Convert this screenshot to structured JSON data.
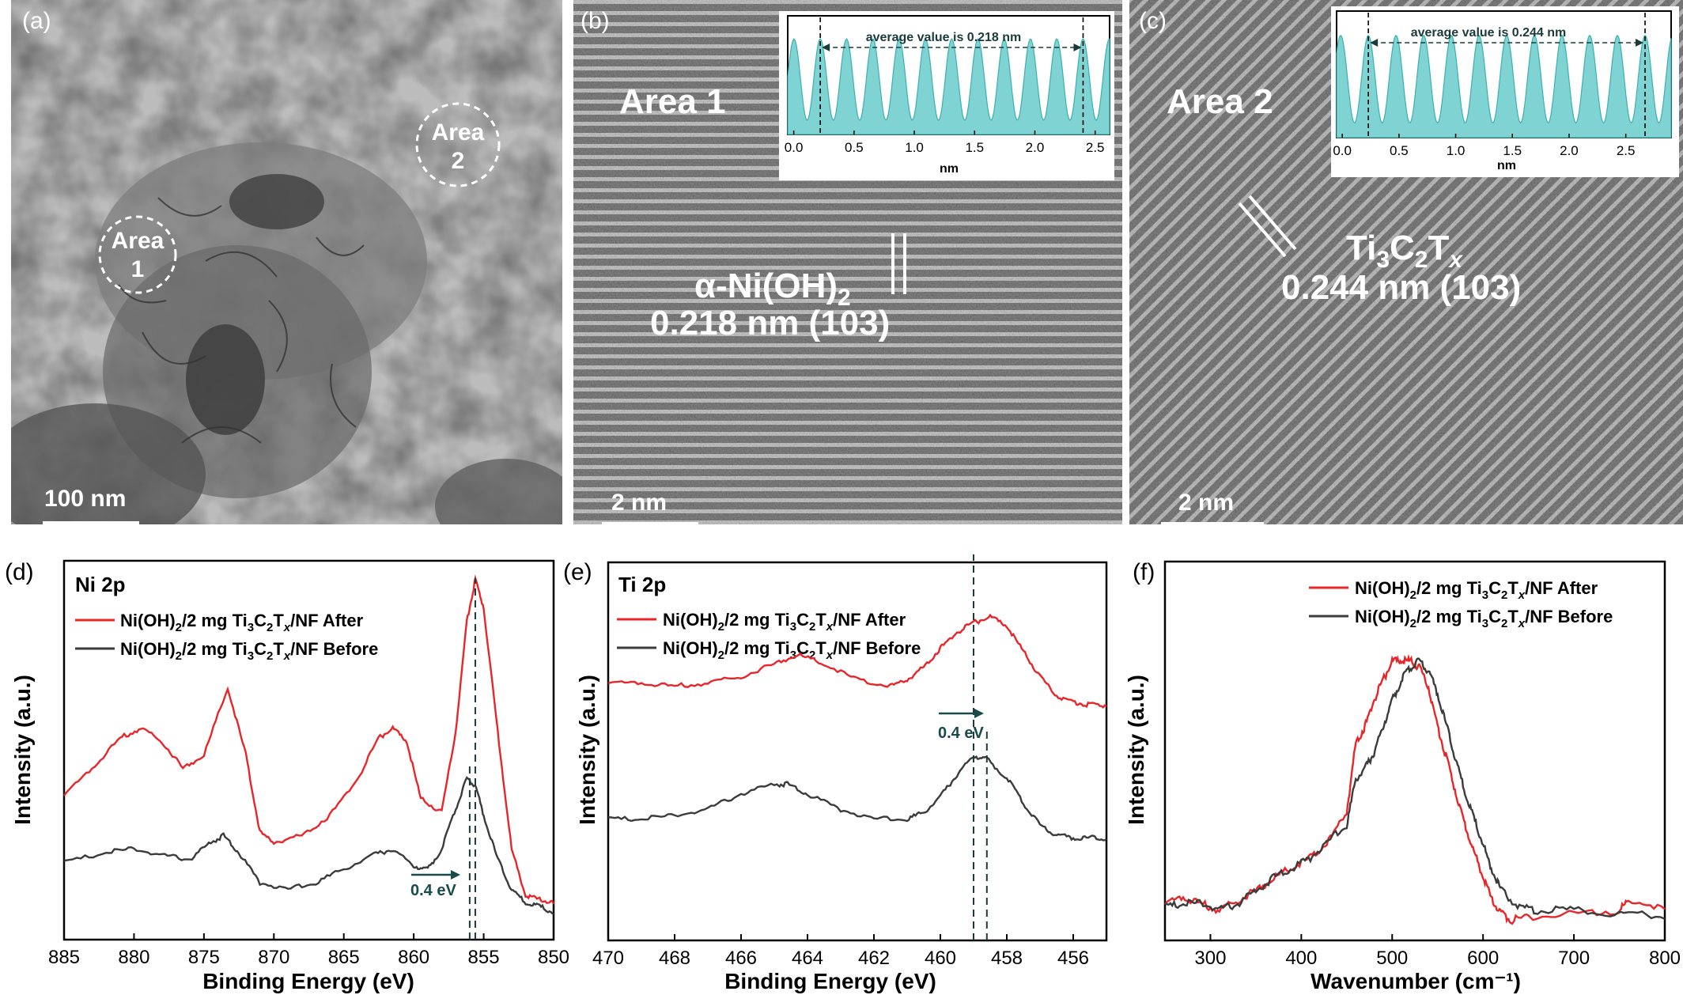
{
  "panels": {
    "a": {
      "label": "(a)",
      "area1": [
        "Area",
        "1"
      ],
      "area2": [
        "Area",
        "2"
      ],
      "scale_bar": "100 nm"
    },
    "b": {
      "label": "(b)",
      "area": "Area 1",
      "phase": "α-Ni(OH)",
      "phase_sub": "2",
      "spacing": "0.218 nm (103)",
      "scale_bar": "2 nm"
    },
    "c": {
      "label": "(c)",
      "phase_parts": [
        "Ti",
        "3",
        "C",
        "2",
        "T",
        "x"
      ],
      "area": "Area 2",
      "spacing": "0.244 nm (103)",
      "scale_bar": "2 nm"
    },
    "d": {
      "label": "(d)",
      "title": "Ni 2p",
      "shift": "0.4 eV"
    },
    "e": {
      "label": "(e)",
      "title": "Ti 2p",
      "shift": "0.4 eV"
    },
    "f": {
      "label": "(f)"
    }
  },
  "legend": {
    "after": {
      "parts": [
        "Ni(OH)",
        "2",
        "/2 mg Ti",
        "3",
        "C",
        "2",
        "T",
        "x",
        "/NF After"
      ],
      "color": "#e8262a"
    },
    "before": {
      "parts": [
        "Ni(OH)",
        "2",
        "/2 mg Ti",
        "3",
        "C",
        "2",
        "T",
        "x",
        "/NF Before"
      ],
      "color": "#3b3b3b"
    }
  },
  "chart_data": [
    {
      "panel": "b-inset",
      "type": "area",
      "xlabel": "nm",
      "xticks": [
        "0.0",
        "0.5",
        "1.0",
        "1.5",
        "2.0",
        "2.5"
      ],
      "xlim": [
        -0.05,
        2.62
      ],
      "annotation": "average value is 0.218 nm",
      "marker_x": [
        0.22,
        2.4
      ],
      "peaks_x": [
        0.22,
        0.44,
        0.65,
        0.87,
        1.09,
        1.31,
        1.52,
        1.74,
        1.96,
        2.18,
        2.4
      ],
      "color": "#7fd3d3"
    },
    {
      "panel": "c-inset",
      "type": "area",
      "xlabel": "nm",
      "xticks": [
        "0.0",
        "0.5",
        "1.0",
        "1.5",
        "2.0",
        "2.5"
      ],
      "xlim": [
        -0.05,
        2.9
      ],
      "annotation": "average value is 0.244 nm",
      "marker_x": [
        0.23,
        2.67
      ],
      "peaks_x": [
        0.23,
        0.47,
        0.72,
        0.96,
        1.21,
        1.45,
        1.69,
        1.94,
        2.18,
        2.43,
        2.67
      ],
      "color": "#7fd3d3"
    },
    {
      "panel": "d",
      "type": "line",
      "title": "Ni 2p",
      "xlabel": "Binding Energy (eV)",
      "ylabel": "Intensity (a.u.)",
      "xlim": [
        885,
        850
      ],
      "ylim": [
        0,
        1
      ],
      "xticks": [
        885,
        880,
        875,
        870,
        865,
        860,
        855,
        850
      ],
      "series": [
        {
          "name": "Ni(OH)2/2 mg Ti3C2Tx/NF After",
          "color": "#e8262a",
          "x": [
            885,
            883,
            881,
            879.5,
            878,
            876.5,
            875,
            873.3,
            872,
            871,
            870,
            868,
            866,
            864,
            862.5,
            861.5,
            860.5,
            859.5,
            858,
            857,
            856.2,
            855.6,
            855,
            854,
            853,
            852,
            851,
            850
          ],
          "y": [
            0.36,
            0.44,
            0.53,
            0.56,
            0.52,
            0.44,
            0.48,
            0.68,
            0.48,
            0.25,
            0.22,
            0.24,
            0.3,
            0.41,
            0.53,
            0.56,
            0.52,
            0.35,
            0.31,
            0.55,
            0.88,
            1.0,
            0.92,
            0.55,
            0.2,
            0.06,
            0.05,
            0.04
          ]
        },
        {
          "name": "Ni(OH)2/2 mg Ti3C2Tx/NF Before",
          "color": "#3b3b3b",
          "x": [
            885,
            882,
            880,
            878,
            876,
            874.5,
            873.6,
            872.5,
            871,
            869,
            867,
            865,
            863,
            861.5,
            860,
            859,
            858,
            857,
            856.2,
            855.6,
            855,
            854,
            853,
            852,
            851,
            850
          ],
          "y": [
            0.16,
            0.19,
            0.2,
            0.18,
            0.17,
            0.22,
            0.24,
            0.19,
            0.1,
            0.08,
            0.1,
            0.14,
            0.18,
            0.2,
            0.15,
            0.14,
            0.2,
            0.32,
            0.41,
            0.39,
            0.3,
            0.17,
            0.08,
            0.04,
            0.03,
            0.01
          ]
        }
      ],
      "dashed_x": [
        855.6,
        856.0
      ]
    },
    {
      "panel": "e",
      "type": "line",
      "title": "Ti 2p",
      "xlabel": "Binding Energy (eV)",
      "ylabel": "Intensity (a.u.)",
      "xlim": [
        470,
        455
      ],
      "ylim": [
        0,
        1
      ],
      "xticks": [
        470,
        468,
        466,
        464,
        462,
        460,
        458,
        456
      ],
      "series": [
        {
          "name": "Ni(OH)2/2 mg Ti3C2Tx/NF After",
          "color": "#e8262a",
          "x": [
            470,
            469,
            468,
            467,
            466,
            465,
            464.3,
            463.5,
            462.5,
            461.5,
            461,
            460.5,
            460,
            459.5,
            459,
            458.5,
            458,
            457.5,
            457,
            456.5,
            456,
            455.5,
            455
          ],
          "y": [
            0.6,
            0.6,
            0.59,
            0.6,
            0.62,
            0.66,
            0.69,
            0.66,
            0.61,
            0.59,
            0.61,
            0.65,
            0.71,
            0.76,
            0.79,
            0.81,
            0.78,
            0.7,
            0.62,
            0.56,
            0.54,
            0.53,
            0.53
          ]
        },
        {
          "name": "Ni(OH)2/2 mg Ti3C2Tx/NF Before",
          "color": "#3b3b3b",
          "x": [
            470,
            469,
            468,
            467,
            466,
            465,
            464.6,
            464,
            463,
            462,
            461,
            460.5,
            460,
            459.5,
            459,
            458.6,
            458,
            457.5,
            457,
            456.5,
            456,
            455.5,
            455
          ],
          "y": [
            0.17,
            0.17,
            0.18,
            0.2,
            0.25,
            0.28,
            0.28,
            0.25,
            0.2,
            0.17,
            0.17,
            0.19,
            0.24,
            0.31,
            0.37,
            0.36,
            0.3,
            0.22,
            0.15,
            0.12,
            0.11,
            0.11,
            0.11
          ]
        }
      ],
      "dashed_x": [
        459.0,
        458.6
      ]
    },
    {
      "panel": "f",
      "type": "line",
      "xlabel": "Wavenumber (cm⁻¹)",
      "ylabel": "Intensity (a.u.)",
      "xlim": [
        250,
        800
      ],
      "ylim": [
        0,
        1
      ],
      "xticks": [
        300,
        400,
        500,
        600,
        700,
        800
      ],
      "series": [
        {
          "name": "Ni(OH)2/2 mg Ti3C2Tx/NF After",
          "color": "#e8262a",
          "x": [
            250,
            270,
            290,
            310,
            330,
            350,
            370,
            390,
            410,
            430,
            450,
            460,
            470,
            480,
            490,
            500,
            510,
            520,
            530,
            540,
            550,
            560,
            570,
            580,
            590,
            600,
            610,
            620,
            630,
            650,
            700,
            750,
            760,
            800
          ],
          "y": [
            0.06,
            0.08,
            0.06,
            0.04,
            0.07,
            0.1,
            0.14,
            0.17,
            0.2,
            0.25,
            0.34,
            0.55,
            0.6,
            0.68,
            0.74,
            0.8,
            0.8,
            0.8,
            0.78,
            0.72,
            0.6,
            0.5,
            0.4,
            0.3,
            0.22,
            0.14,
            0.07,
            0.03,
            0.01,
            0.02,
            0.03,
            0.04,
            0.07,
            0.05
          ]
        },
        {
          "name": "Ni(OH)2/2 mg Ti3C2Tx/NF Before",
          "color": "#3b3b3b",
          "x": [
            250,
            270,
            290,
            310,
            330,
            350,
            370,
            390,
            410,
            430,
            450,
            460,
            470,
            480,
            490,
            500,
            510,
            520,
            530,
            540,
            550,
            560,
            570,
            580,
            590,
            600,
            610,
            620,
            640,
            660,
            700,
            750,
            800
          ],
          "y": [
            0.05,
            0.06,
            0.06,
            0.04,
            0.06,
            0.1,
            0.14,
            0.17,
            0.2,
            0.25,
            0.3,
            0.44,
            0.47,
            0.52,
            0.6,
            0.68,
            0.74,
            0.78,
            0.8,
            0.77,
            0.7,
            0.6,
            0.5,
            0.4,
            0.32,
            0.24,
            0.16,
            0.1,
            0.05,
            0.04,
            0.04,
            0.03,
            0.02
          ]
        }
      ]
    }
  ]
}
